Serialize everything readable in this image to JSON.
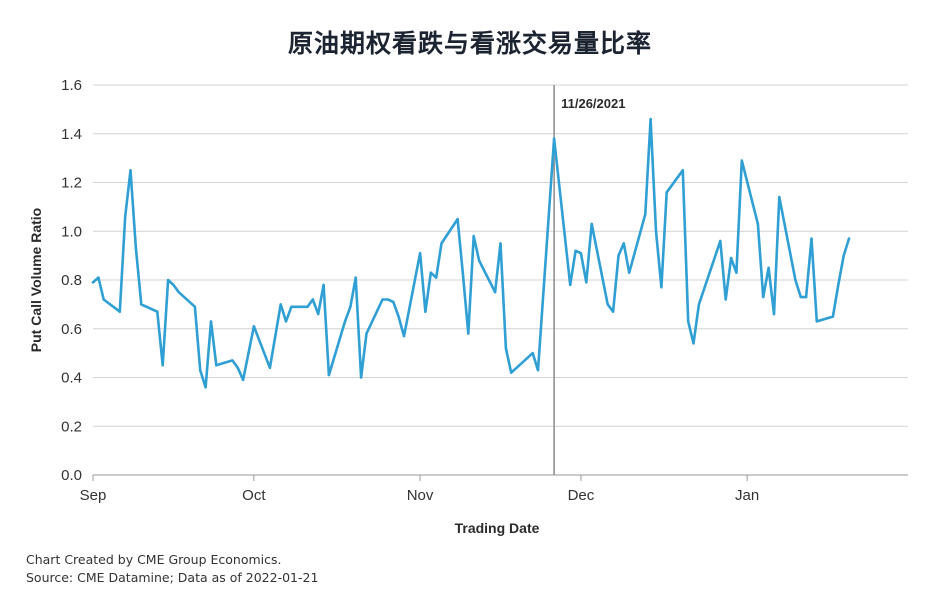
{
  "chart_data": {
    "type": "line",
    "title": "原油期权看跌与看涨交易量比率",
    "xlabel": "Trading Date",
    "ylabel": "Put Call Volume Ratio",
    "ylim": [
      0,
      1.6
    ],
    "yticks": [
      "0.0",
      "0.2",
      "0.4",
      "0.6",
      "0.8",
      "1.0",
      "1.2",
      "1.4",
      "1.6"
    ],
    "xlim": [
      "2021-09-01",
      "2022-01-31"
    ],
    "xticks": [
      {
        "label": "Sep",
        "date": "2021-09-01"
      },
      {
        "label": "Oct",
        "date": "2021-10-01"
      },
      {
        "label": "Nov",
        "date": "2021-11-01"
      },
      {
        "label": "Dec",
        "date": "2021-12-01"
      },
      {
        "label": "Jan",
        "date": "2022-01-01"
      }
    ],
    "grid": true,
    "line_color": "#2f9fd4",
    "annotation": {
      "label": "11/26/2021",
      "date": "2021-11-26"
    },
    "series": [
      {
        "points": [
          [
            "2021-09-01",
            0.79
          ],
          [
            "2021-09-02",
            0.81
          ],
          [
            "2021-09-03",
            0.72
          ],
          [
            "2021-09-06",
            0.67
          ],
          [
            "2021-09-07",
            1.06
          ],
          [
            "2021-09-08",
            1.25
          ],
          [
            "2021-09-09",
            0.93
          ],
          [
            "2021-09-10",
            0.7
          ],
          [
            "2021-09-13",
            0.67
          ],
          [
            "2021-09-14",
            0.45
          ],
          [
            "2021-09-15",
            0.8
          ],
          [
            "2021-09-16",
            0.78
          ],
          [
            "2021-09-17",
            0.75
          ],
          [
            "2021-09-20",
            0.69
          ],
          [
            "2021-09-21",
            0.43
          ],
          [
            "2021-09-22",
            0.36
          ],
          [
            "2021-09-23",
            0.63
          ],
          [
            "2021-09-24",
            0.45
          ],
          [
            "2021-09-27",
            0.47
          ],
          [
            "2021-09-28",
            0.44
          ],
          [
            "2021-09-29",
            0.39
          ],
          [
            "2021-10-01",
            0.61
          ],
          [
            "2021-10-04",
            0.44
          ],
          [
            "2021-10-05",
            0.57
          ],
          [
            "2021-10-06",
            0.7
          ],
          [
            "2021-10-07",
            0.63
          ],
          [
            "2021-10-08",
            0.69
          ],
          [
            "2021-10-11",
            0.69
          ],
          [
            "2021-10-12",
            0.72
          ],
          [
            "2021-10-13",
            0.66
          ],
          [
            "2021-10-14",
            0.78
          ],
          [
            "2021-10-15",
            0.41
          ],
          [
            "2021-10-18",
            0.63
          ],
          [
            "2021-10-19",
            0.69
          ],
          [
            "2021-10-20",
            0.81
          ],
          [
            "2021-10-21",
            0.4
          ],
          [
            "2021-10-22",
            0.58
          ],
          [
            "2021-10-25",
            0.72
          ],
          [
            "2021-10-26",
            0.72
          ],
          [
            "2021-10-27",
            0.71
          ],
          [
            "2021-10-28",
            0.65
          ],
          [
            "2021-10-29",
            0.57
          ],
          [
            "2021-11-01",
            0.91
          ],
          [
            "2021-11-02",
            0.67
          ],
          [
            "2021-11-03",
            0.83
          ],
          [
            "2021-11-04",
            0.81
          ],
          [
            "2021-11-05",
            0.95
          ],
          [
            "2021-11-08",
            1.05
          ],
          [
            "2021-11-09",
            0.82
          ],
          [
            "2021-11-10",
            0.58
          ],
          [
            "2021-11-11",
            0.98
          ],
          [
            "2021-11-12",
            0.88
          ],
          [
            "2021-11-15",
            0.75
          ],
          [
            "2021-11-16",
            0.95
          ],
          [
            "2021-11-17",
            0.52
          ],
          [
            "2021-11-18",
            0.42
          ],
          [
            "2021-11-19",
            0.44
          ],
          [
            "2021-11-22",
            0.5
          ],
          [
            "2021-11-23",
            0.43
          ],
          [
            "2021-11-26",
            1.38
          ],
          [
            "2021-11-29",
            0.78
          ],
          [
            "2021-11-30",
            0.92
          ],
          [
            "2021-12-01",
            0.91
          ],
          [
            "2021-12-02",
            0.79
          ],
          [
            "2021-12-03",
            1.03
          ],
          [
            "2021-12-06",
            0.7
          ],
          [
            "2021-12-07",
            0.67
          ],
          [
            "2021-12-08",
            0.9
          ],
          [
            "2021-12-09",
            0.95
          ],
          [
            "2021-12-10",
            0.83
          ],
          [
            "2021-12-13",
            1.07
          ],
          [
            "2021-12-14",
            1.46
          ],
          [
            "2021-12-15",
            1.0
          ],
          [
            "2021-12-16",
            0.77
          ],
          [
            "2021-12-17",
            1.16
          ],
          [
            "2021-12-20",
            1.25
          ],
          [
            "2021-12-21",
            0.63
          ],
          [
            "2021-12-22",
            0.54
          ],
          [
            "2021-12-23",
            0.7
          ],
          [
            "2021-12-27",
            0.96
          ],
          [
            "2021-12-28",
            0.72
          ],
          [
            "2021-12-29",
            0.89
          ],
          [
            "2021-12-30",
            0.83
          ],
          [
            "2021-12-31",
            1.29
          ],
          [
            "2022-01-03",
            1.03
          ],
          [
            "2022-01-04",
            0.73
          ],
          [
            "2022-01-05",
            0.85
          ],
          [
            "2022-01-06",
            0.66
          ],
          [
            "2022-01-07",
            1.14
          ],
          [
            "2022-01-10",
            0.8
          ],
          [
            "2022-01-11",
            0.73
          ],
          [
            "2022-01-12",
            0.73
          ],
          [
            "2022-01-13",
            0.97
          ],
          [
            "2022-01-14",
            0.63
          ],
          [
            "2022-01-17",
            0.65
          ],
          [
            "2022-01-18",
            0.78
          ],
          [
            "2022-01-19",
            0.9
          ],
          [
            "2022-01-20",
            0.97
          ]
        ]
      }
    ]
  },
  "footer": {
    "credit": "Chart Created by CME Group Economics.",
    "source": "Source:  CME Datamine; Data as of 2022-01-21"
  }
}
